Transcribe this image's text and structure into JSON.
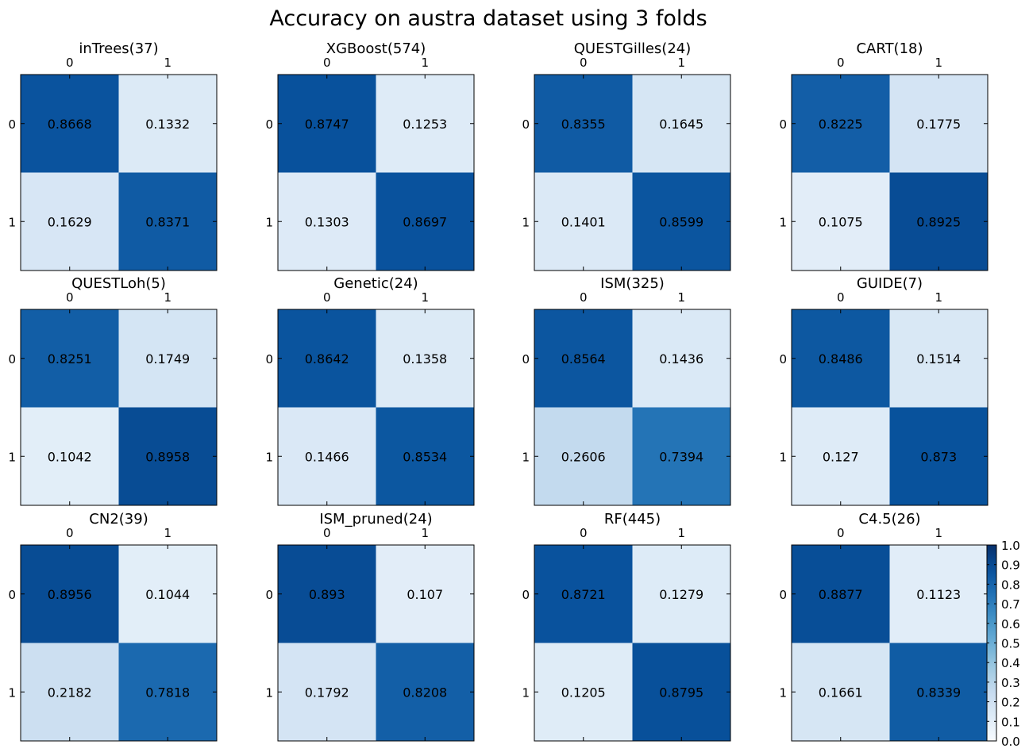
{
  "figure": {
    "title": "Accuracy on austra dataset using 3 folds"
  },
  "colorbar": {
    "range": [
      0.0,
      1.0
    ],
    "tick_labels": [
      "0.0",
      "0.1",
      "0.2",
      "0.3",
      "0.4",
      "0.5",
      "0.6",
      "0.7",
      "0.8",
      "0.9",
      "1.0"
    ],
    "colormap": "Blues",
    "color_low": "#f7fbff",
    "color_high": "#08306b"
  },
  "chart_data": [
    {
      "type": "heatmap",
      "title": "inTrees(37)",
      "x_tick_labels": [
        "0",
        "1"
      ],
      "y_tick_labels": [
        "0",
        "1"
      ],
      "matrix": [
        [
          0.8668,
          0.1332
        ],
        [
          0.1629,
          0.8371
        ]
      ],
      "cell_labels": [
        [
          "0.8668",
          "0.1332"
        ],
        [
          "0.1629",
          "0.8371"
        ]
      ],
      "vmin": 0.0,
      "vmax": 1.0
    },
    {
      "type": "heatmap",
      "title": "XGBoost(574)",
      "x_tick_labels": [
        "0",
        "1"
      ],
      "y_tick_labels": [
        "0",
        "1"
      ],
      "matrix": [
        [
          0.8747,
          0.1253
        ],
        [
          0.1303,
          0.8697
        ]
      ],
      "cell_labels": [
        [
          "0.8747",
          "0.1253"
        ],
        [
          "0.1303",
          "0.8697"
        ]
      ],
      "vmin": 0.0,
      "vmax": 1.0
    },
    {
      "type": "heatmap",
      "title": "QUESTGilles(24)",
      "x_tick_labels": [
        "0",
        "1"
      ],
      "y_tick_labels": [
        "0",
        "1"
      ],
      "matrix": [
        [
          0.8355,
          0.1645
        ],
        [
          0.1401,
          0.8599
        ]
      ],
      "cell_labels": [
        [
          "0.8355",
          "0.1645"
        ],
        [
          "0.1401",
          "0.8599"
        ]
      ],
      "vmin": 0.0,
      "vmax": 1.0
    },
    {
      "type": "heatmap",
      "title": "CART(18)",
      "x_tick_labels": [
        "0",
        "1"
      ],
      "y_tick_labels": [
        "0",
        "1"
      ],
      "matrix": [
        [
          0.8225,
          0.1775
        ],
        [
          0.1075,
          0.8925
        ]
      ],
      "cell_labels": [
        [
          "0.8225",
          "0.1775"
        ],
        [
          "0.1075",
          "0.8925"
        ]
      ],
      "vmin": 0.0,
      "vmax": 1.0
    },
    {
      "type": "heatmap",
      "title": "QUESTLoh(5)",
      "x_tick_labels": [
        "0",
        "1"
      ],
      "y_tick_labels": [
        "0",
        "1"
      ],
      "matrix": [
        [
          0.8251,
          0.1749
        ],
        [
          0.1042,
          0.8958
        ]
      ],
      "cell_labels": [
        [
          "0.8251",
          "0.1749"
        ],
        [
          "0.1042",
          "0.8958"
        ]
      ],
      "vmin": 0.0,
      "vmax": 1.0
    },
    {
      "type": "heatmap",
      "title": "Genetic(24)",
      "x_tick_labels": [
        "0",
        "1"
      ],
      "y_tick_labels": [
        "0",
        "1"
      ],
      "matrix": [
        [
          0.8642,
          0.1358
        ],
        [
          0.1466,
          0.8534
        ]
      ],
      "cell_labels": [
        [
          "0.8642",
          "0.1358"
        ],
        [
          "0.1466",
          "0.8534"
        ]
      ],
      "vmin": 0.0,
      "vmax": 1.0
    },
    {
      "type": "heatmap",
      "title": "ISM(325)",
      "x_tick_labels": [
        "0",
        "1"
      ],
      "y_tick_labels": [
        "0",
        "1"
      ],
      "matrix": [
        [
          0.8564,
          0.1436
        ],
        [
          0.2606,
          0.7394
        ]
      ],
      "cell_labels": [
        [
          "0.8564",
          "0.1436"
        ],
        [
          "0.2606",
          "0.7394"
        ]
      ],
      "vmin": 0.0,
      "vmax": 1.0
    },
    {
      "type": "heatmap",
      "title": "GUIDE(7)",
      "x_tick_labels": [
        "0",
        "1"
      ],
      "y_tick_labels": [
        "0",
        "1"
      ],
      "matrix": [
        [
          0.8486,
          0.1514
        ],
        [
          0.127,
          0.873
        ]
      ],
      "cell_labels": [
        [
          "0.8486",
          "0.1514"
        ],
        [
          "0.127",
          "0.873"
        ]
      ],
      "vmin": 0.0,
      "vmax": 1.0
    },
    {
      "type": "heatmap",
      "title": "CN2(39)",
      "x_tick_labels": [
        "0",
        "1"
      ],
      "y_tick_labels": [
        "0",
        "1"
      ],
      "matrix": [
        [
          0.8956,
          0.1044
        ],
        [
          0.2182,
          0.7818
        ]
      ],
      "cell_labels": [
        [
          "0.8956",
          "0.1044"
        ],
        [
          "0.2182",
          "0.7818"
        ]
      ],
      "vmin": 0.0,
      "vmax": 1.0
    },
    {
      "type": "heatmap",
      "title": "ISM_pruned(24)",
      "x_tick_labels": [
        "0",
        "1"
      ],
      "y_tick_labels": [
        "0",
        "1"
      ],
      "matrix": [
        [
          0.893,
          0.107
        ],
        [
          0.1792,
          0.8208
        ]
      ],
      "cell_labels": [
        [
          "0.893",
          "0.107"
        ],
        [
          "0.1792",
          "0.8208"
        ]
      ],
      "vmin": 0.0,
      "vmax": 1.0
    },
    {
      "type": "heatmap",
      "title": "RF(445)",
      "x_tick_labels": [
        "0",
        "1"
      ],
      "y_tick_labels": [
        "0",
        "1"
      ],
      "matrix": [
        [
          0.8721,
          0.1279
        ],
        [
          0.1205,
          0.8795
        ]
      ],
      "cell_labels": [
        [
          "0.8721",
          "0.1279"
        ],
        [
          "0.1205",
          "0.8795"
        ]
      ],
      "vmin": 0.0,
      "vmax": 1.0
    },
    {
      "type": "heatmap",
      "title": "C4.5(26)",
      "x_tick_labels": [
        "0",
        "1"
      ],
      "y_tick_labels": [
        "0",
        "1"
      ],
      "matrix": [
        [
          0.8877,
          0.1123
        ],
        [
          0.1661,
          0.8339
        ]
      ],
      "cell_labels": [
        [
          "0.8877",
          "0.1123"
        ],
        [
          "0.1661",
          "0.8339"
        ]
      ],
      "vmin": 0.0,
      "vmax": 1.0
    }
  ]
}
